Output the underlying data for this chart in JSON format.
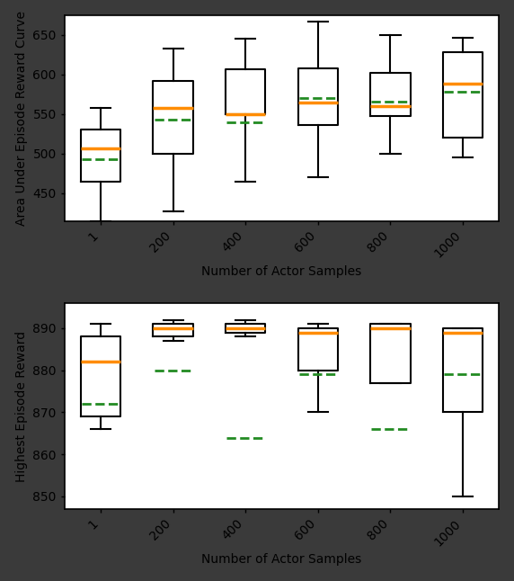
{
  "categories": [
    "1",
    "200",
    "400",
    "600",
    "800",
    "1000"
  ],
  "top": {
    "ylabel": "Area Under Episode Reward Curve",
    "xlabel": "Number of Actor Samples",
    "ylim": [
      415,
      675
    ],
    "yticks": [
      450,
      500,
      550,
      600,
      650
    ],
    "boxes": [
      {
        "q1": 465,
        "median": 507,
        "q3": 530,
        "whislo": 415,
        "whishi": 558,
        "mean": 493
      },
      {
        "q1": 500,
        "median": 558,
        "q3": 592,
        "whislo": 427,
        "whishi": 633,
        "mean": 543
      },
      {
        "q1": 550,
        "median": 550,
        "q3": 607,
        "whislo": 465,
        "whishi": 645,
        "mean": 540
      },
      {
        "q1": 536,
        "median": 565,
        "q3": 608,
        "whislo": 470,
        "whishi": 667,
        "mean": 570
      },
      {
        "q1": 548,
        "median": 560,
        "q3": 602,
        "whislo": 500,
        "whishi": 650,
        "mean": 566
      },
      {
        "q1": 520,
        "median": 588,
        "q3": 628,
        "whislo": 495,
        "whishi": 646,
        "mean": 578
      }
    ]
  },
  "bottom": {
    "ylabel": "Highest Episode Reward",
    "xlabel": "Number of Actor Samples",
    "ylim": [
      847,
      896
    ],
    "yticks": [
      850,
      860,
      870,
      880,
      890
    ],
    "boxes": [
      {
        "q1": 869,
        "median": 882,
        "q3": 888,
        "whislo": 866,
        "whishi": 891,
        "mean": 872
      },
      {
        "q1": 888,
        "median": 890,
        "q3": 891,
        "whislo": 887,
        "whishi": 892,
        "mean": 880
      },
      {
        "q1": 889,
        "median": 890,
        "q3": 891,
        "whislo": 888,
        "whishi": 892,
        "mean": 864
      },
      {
        "q1": 880,
        "median": 889,
        "q3": 890,
        "whislo": 870,
        "whishi": 891,
        "mean": 879
      },
      {
        "q1": 877,
        "median": 890,
        "q3": 891,
        "whislo": 877,
        "whishi": 891,
        "mean": 866
      },
      {
        "q1": 870,
        "median": 889,
        "q3": 890,
        "whislo": 850,
        "whishi": 890,
        "mean": 879
      }
    ]
  },
  "median_color": "#FF8C00",
  "mean_color": "#228B22",
  "box_color": "black",
  "box_width": 0.55,
  "linewidth": 1.5,
  "outer_bg": "#3a3a3a",
  "inner_bg": "white",
  "tick_fontsize": 10,
  "label_fontsize": 10,
  "ylabel_fontsize": 10
}
